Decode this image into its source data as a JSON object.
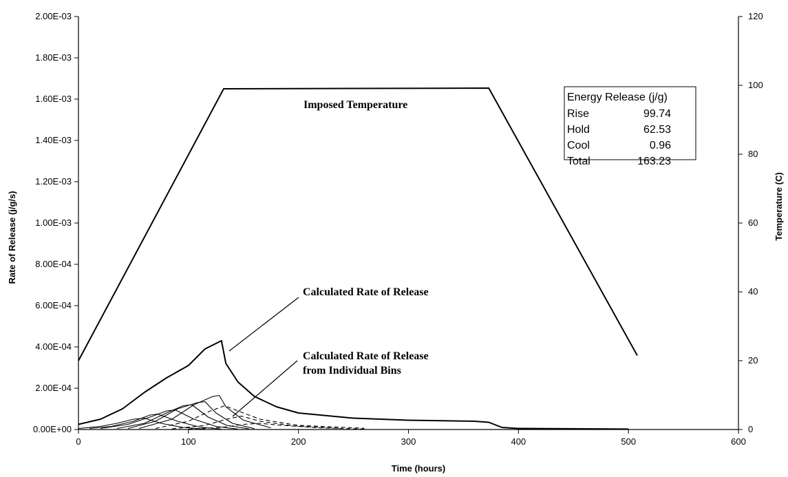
{
  "chart_data": {
    "type": "line",
    "title": "",
    "xlabel": "Time (hours)",
    "ylabel": "Rate of Release (j/g/s)",
    "y2label": "Temperature (C)",
    "xlim": [
      0,
      600
    ],
    "ylim": [
      0,
      0.002
    ],
    "y2lim": [
      0,
      120
    ],
    "grid": false,
    "x_ticks": [
      {
        "value": 0,
        "label": "0"
      },
      {
        "value": 100,
        "label": "100"
      },
      {
        "value": 200,
        "label": "200"
      },
      {
        "value": 300,
        "label": "300"
      },
      {
        "value": 400,
        "label": "400"
      },
      {
        "value": 500,
        "label": "500"
      },
      {
        "value": 600,
        "label": "600"
      }
    ],
    "y_ticks": [
      {
        "value": 0,
        "label": "0.00E+00"
      },
      {
        "value": 0.0002,
        "label": "2.00E-04"
      },
      {
        "value": 0.0004,
        "label": "4.00E-04"
      },
      {
        "value": 0.0006,
        "label": "6.00E-04"
      },
      {
        "value": 0.0008,
        "label": "8.00E-04"
      },
      {
        "value": 0.001,
        "label": "1.00E-03"
      },
      {
        "value": 0.0012,
        "label": "1.20E-03"
      },
      {
        "value": 0.0014,
        "label": "1.40E-03"
      },
      {
        "value": 0.0016,
        "label": "1.60E-03"
      },
      {
        "value": 0.0018,
        "label": "1.80E-03"
      },
      {
        "value": 0.002,
        "label": "2.00E-03"
      }
    ],
    "y2_ticks": [
      {
        "value": 0,
        "label": "0"
      },
      {
        "value": 20,
        "label": "20"
      },
      {
        "value": 40,
        "label": "40"
      },
      {
        "value": 60,
        "label": "60"
      },
      {
        "value": 80,
        "label": "80"
      },
      {
        "value": 100,
        "label": "100"
      },
      {
        "value": 120,
        "label": "120"
      }
    ],
    "series": [
      {
        "axis": "y2",
        "points": [
          [
            0,
            20
          ],
          [
            132,
            99
          ],
          [
            373,
            99.2
          ],
          [
            508,
            21.5
          ]
        ]
      },
      {
        "axis": "y",
        "points": [
          [
            0,
            2.5e-05
          ],
          [
            20,
            5e-05
          ],
          [
            40,
            0.0001
          ],
          [
            60,
            0.00018
          ],
          [
            80,
            0.00025
          ],
          [
            100,
            0.00031
          ],
          [
            115,
            0.00039
          ],
          [
            130,
            0.00043
          ],
          [
            134,
            0.00032
          ],
          [
            145,
            0.00023
          ],
          [
            160,
            0.00016
          ],
          [
            180,
            0.00011
          ],
          [
            200,
            8e-05
          ],
          [
            250,
            5.5e-05
          ],
          [
            300,
            4.5e-05
          ],
          [
            360,
            4e-05
          ],
          [
            373,
            3.5e-05
          ],
          [
            385,
            1e-05
          ],
          [
            400,
            5e-06
          ],
          [
            500,
            2e-06
          ]
        ]
      },
      {
        "axis": "y",
        "points": [
          [
            0,
            5e-06
          ],
          [
            20,
            1.5e-05
          ],
          [
            35,
            3e-05
          ],
          [
            50,
            5e-05
          ],
          [
            60,
            5.5e-05
          ],
          [
            75,
            3e-05
          ],
          [
            95,
            1e-05
          ],
          [
            115,
            2e-06
          ]
        ]
      },
      {
        "axis": "y",
        "points": [
          [
            10,
            5e-06
          ],
          [
            30,
            1.5e-05
          ],
          [
            50,
            4e-05
          ],
          [
            65,
            7e-05
          ],
          [
            72,
            7.5e-05
          ],
          [
            90,
            4e-05
          ],
          [
            110,
            1.2e-05
          ],
          [
            130,
            2e-06
          ]
        ]
      },
      {
        "axis": "y",
        "points": [
          [
            20,
            5e-06
          ],
          [
            45,
            2.5e-05
          ],
          [
            65,
            6e-05
          ],
          [
            80,
            9e-05
          ],
          [
            88,
            9.5e-05
          ],
          [
            105,
            5e-05
          ],
          [
            125,
            1.5e-05
          ],
          [
            145,
            2e-06
          ]
        ]
      },
      {
        "axis": "y",
        "points": [
          [
            35,
            5e-06
          ],
          [
            60,
            3e-05
          ],
          [
            80,
            8e-05
          ],
          [
            95,
            0.000115
          ],
          [
            103,
            0.00012
          ],
          [
            118,
            6e-05
          ],
          [
            135,
            2e-05
          ],
          [
            155,
            3e-06
          ]
        ]
      },
      {
        "axis": "y",
        "points": [
          [
            45,
            5e-06
          ],
          [
            70,
            4e-05
          ],
          [
            90,
            0.0001
          ],
          [
            108,
            0.00013
          ],
          [
            115,
            0.000135
          ],
          [
            125,
            8e-05
          ],
          [
            140,
            3e-05
          ],
          [
            160,
            4e-06
          ]
        ]
      },
      {
        "axis": "y",
        "points": [
          [
            55,
            5e-06
          ],
          [
            85,
            5e-05
          ],
          [
            105,
            0.00012
          ],
          [
            122,
            0.00016
          ],
          [
            128,
            0.000165
          ],
          [
            134,
            0.00011
          ],
          [
            150,
            4.5e-05
          ],
          [
            175,
            8e-06
          ]
        ]
      },
      {
        "axis": "y",
        "dashed": true,
        "points": [
          [
            70,
            5e-06
          ],
          [
            100,
            4e-05
          ],
          [
            120,
            9e-05
          ],
          [
            133,
            0.000115
          ],
          [
            145,
            9e-05
          ],
          [
            165,
            5e-05
          ],
          [
            200,
            2e-05
          ],
          [
            260,
            6e-06
          ]
        ]
      },
      {
        "axis": "y",
        "dashed": true,
        "points": [
          [
            85,
            3e-06
          ],
          [
            115,
            2e-05
          ],
          [
            135,
            5e-05
          ],
          [
            148,
            6.5e-05
          ],
          [
            165,
            4e-05
          ],
          [
            195,
            1.8e-05
          ],
          [
            240,
            5e-06
          ]
        ]
      },
      {
        "axis": "y",
        "dashed": true,
        "points": [
          [
            100,
            2e-06
          ],
          [
            130,
            1e-05
          ],
          [
            150,
            2.5e-05
          ],
          [
            165,
            3e-05
          ],
          [
            185,
            2e-05
          ],
          [
            220,
            8e-06
          ],
          [
            260,
            2e-06
          ]
        ]
      }
    ],
    "annotations": [
      {
        "text": "Imposed Temperature"
      },
      {
        "text": "Calculated Rate of Release"
      },
      {
        "text": "Calculated Rate of Release",
        "text2": "from Individual Bins"
      }
    ],
    "legend": {
      "title": "Energy Release (j/g)",
      "rows": [
        {
          "label": "Rise",
          "value": "99.74"
        },
        {
          "label": "Hold",
          "value": "62.53"
        },
        {
          "label": "Cool",
          "value": "0.96"
        },
        {
          "label": "Total",
          "value": "163.23"
        }
      ]
    }
  }
}
